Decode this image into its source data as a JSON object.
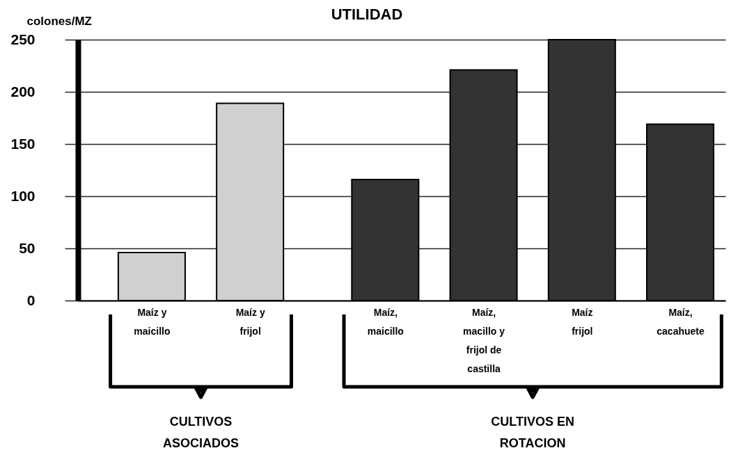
{
  "chart_data": {
    "type": "bar",
    "title": "UTILIDAD",
    "ylabel": "colones/MZ",
    "categories": [
      "Maíz y maicillo",
      "Maíz y frijol",
      "Maíz, maicillo",
      "Maíz, macillo y frijol de castilla",
      "Maíz frijol",
      "Maíz, cacahuete"
    ],
    "values": [
      46,
      189,
      116,
      221,
      250,
      169
    ],
    "colors": [
      "#d0d0d0",
      "#d0d0d0",
      "#333333",
      "#333333",
      "#333333",
      "#333333"
    ],
    "ylim": [
      0,
      250
    ],
    "yticks": [
      0,
      50,
      100,
      150,
      200,
      250
    ],
    "grid": "y",
    "annotations": [
      "CULTIVOS ASOCIADOS",
      "CULTIVOS EN ROTACION"
    ]
  }
}
